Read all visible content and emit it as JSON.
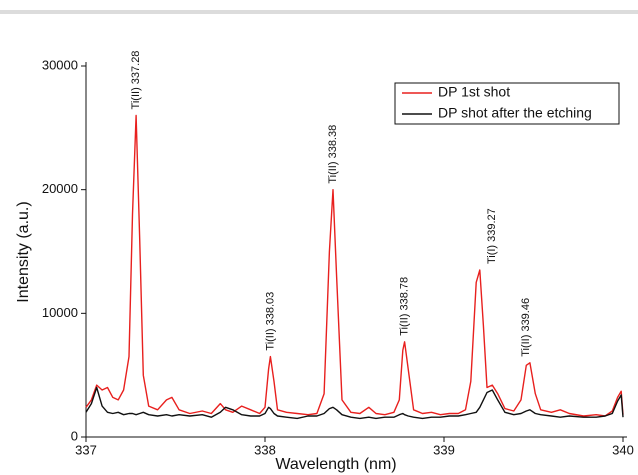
{
  "chart_data": {
    "type": "line",
    "xlabel": "Wavelength (nm)",
    "ylabel": "Intensity (a.u.)",
    "x": [
      337.0,
      337.03,
      337.06,
      337.09,
      337.12,
      337.15,
      337.18,
      337.21,
      337.24,
      337.26,
      337.28,
      337.3,
      337.32,
      337.35,
      337.4,
      337.45,
      337.48,
      337.52,
      337.58,
      337.65,
      337.7,
      337.75,
      337.78,
      337.82,
      337.87,
      337.92,
      337.97,
      338.0,
      338.02,
      338.03,
      338.05,
      338.07,
      338.12,
      338.18,
      338.24,
      338.29,
      338.33,
      338.36,
      338.38,
      338.4,
      338.43,
      338.48,
      338.53,
      338.58,
      338.62,
      338.67,
      338.72,
      338.75,
      338.77,
      338.78,
      338.8,
      338.83,
      338.88,
      338.93,
      338.98,
      339.03,
      339.08,
      339.12,
      339.15,
      339.18,
      339.2,
      339.22,
      339.24,
      339.27,
      339.3,
      339.34,
      339.39,
      339.43,
      339.46,
      339.48,
      339.51,
      339.54,
      339.6,
      339.65,
      339.7,
      339.78,
      339.85,
      339.9,
      339.94,
      339.97,
      339.99,
      340.0
    ],
    "series": [
      {
        "name": "DP 1st shot",
        "color": "#e8201e",
        "values": [
          2400,
          3000,
          4200,
          3800,
          4000,
          3200,
          3000,
          3800,
          6500,
          18000,
          26000,
          16000,
          5000,
          2500,
          2200,
          3000,
          3200,
          2200,
          1900,
          2100,
          1900,
          2700,
          2200,
          2000,
          2500,
          2200,
          1900,
          2400,
          5500,
          6500,
          4500,
          2200,
          2000,
          1900,
          1800,
          1900,
          3500,
          15000,
          20000,
          13000,
          3000,
          2000,
          1900,
          2400,
          1900,
          1800,
          2000,
          3000,
          7000,
          7700,
          5500,
          2200,
          1900,
          2000,
          1800,
          1900,
          1900,
          2200,
          4500,
          12500,
          13500,
          9000,
          4000,
          4200,
          3500,
          2300,
          2100,
          3000,
          5800,
          6000,
          3500,
          2200,
          2000,
          2200,
          1900,
          1700,
          1800,
          1700,
          2100,
          3200,
          3700,
          1800
        ]
      },
      {
        "name": "DP shot after the etching",
        "color": "#111111",
        "values": [
          2000,
          2700,
          4000,
          2500,
          2000,
          1900,
          2000,
          1800,
          1900,
          1900,
          1800,
          1900,
          2000,
          1800,
          1700,
          1800,
          1700,
          1800,
          1700,
          1800,
          1600,
          2000,
          2400,
          2200,
          1800,
          1700,
          1700,
          1900,
          2400,
          2300,
          1900,
          1700,
          1600,
          1500,
          1700,
          1700,
          1900,
          2300,
          2400,
          2200,
          1800,
          1600,
          1500,
          1600,
          1500,
          1600,
          1600,
          1800,
          1900,
          1800,
          1700,
          1600,
          1500,
          1600,
          1600,
          1700,
          1700,
          1800,
          1900,
          2000,
          2400,
          3000,
          3600,
          3800,
          3000,
          2000,
          1800,
          1900,
          2100,
          2200,
          1900,
          1800,
          1700,
          1600,
          1700,
          1600,
          1600,
          1700,
          1900,
          2900,
          3400,
          1600
        ]
      }
    ],
    "annotations": [
      {
        "text": "Ti(II) 337.28",
        "x": 337.28
      },
      {
        "text": "Ti(II) 338.03",
        "x": 338.03
      },
      {
        "text": "Ti(II) 338.38",
        "x": 338.38
      },
      {
        "text": "Ti(II) 338.78",
        "x": 338.78
      },
      {
        "text": "Ti(I) 339.27",
        "x": 339.27
      },
      {
        "text": "Ti(II) 339.46",
        "x": 339.46
      }
    ],
    "xlim": [
      337,
      340
    ],
    "xticks": [
      337,
      338,
      339,
      340
    ],
    "ylim": [
      0,
      30000
    ],
    "yticks": [
      0,
      10000,
      20000,
      30000
    ],
    "legend": "upper right"
  }
}
